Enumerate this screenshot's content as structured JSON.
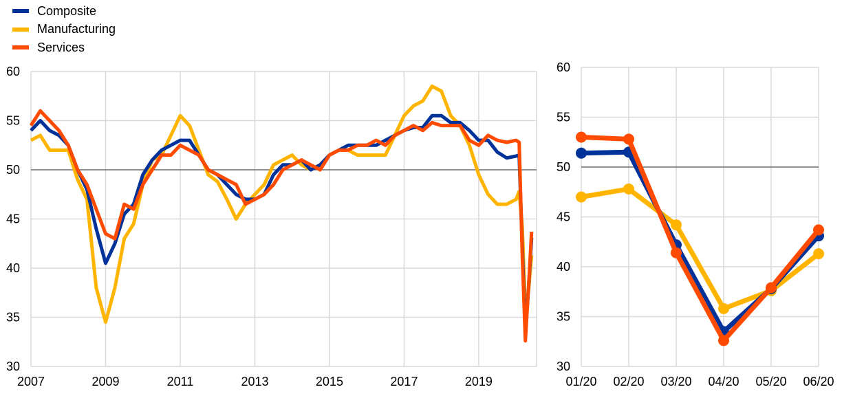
{
  "colors": {
    "Composite": "#003299",
    "Manufacturing": "#ffb400",
    "Services": "#ff4b00",
    "grid": "#d9d9d9",
    "reference": "#595959"
  },
  "legend": [
    "Composite",
    "Manufacturing",
    "Services"
  ],
  "chart_data": [
    {
      "type": "line",
      "title": "",
      "xlabel": "",
      "ylabel": "",
      "x_ticks": [
        "2007",
        "2009",
        "2011",
        "2013",
        "2015",
        "2017",
        "2019"
      ],
      "y_ticks": [
        30,
        35,
        40,
        45,
        50,
        55,
        60
      ],
      "ylim": [
        30,
        60
      ],
      "xlim": [
        2007,
        2020.55
      ],
      "reference_line": 50,
      "grid": true,
      "x": [
        2007.0,
        2007.25,
        2007.5,
        2007.75,
        2008.0,
        2008.25,
        2008.5,
        2008.75,
        2009.0,
        2009.25,
        2009.5,
        2009.75,
        2010.0,
        2010.25,
        2010.5,
        2010.75,
        2011.0,
        2011.25,
        2011.5,
        2011.75,
        2012.0,
        2012.25,
        2012.5,
        2012.75,
        2013.0,
        2013.25,
        2013.5,
        2013.75,
        2014.0,
        2014.25,
        2014.5,
        2014.75,
        2015.0,
        2015.25,
        2015.5,
        2015.75,
        2016.0,
        2016.25,
        2016.5,
        2016.75,
        2017.0,
        2017.25,
        2017.5,
        2017.75,
        2018.0,
        2018.25,
        2018.5,
        2018.75,
        2019.0,
        2019.25,
        2019.5,
        2019.75,
        2020.0,
        2020.083,
        2020.167,
        2020.25,
        2020.333,
        2020.417
      ],
      "series": [
        {
          "name": "Composite",
          "values": [
            54.0,
            55.0,
            54.0,
            53.5,
            52.5,
            50.0,
            48.0,
            44.0,
            40.5,
            42.5,
            45.5,
            46.5,
            49.5,
            51.0,
            52.0,
            52.5,
            53.0,
            53.0,
            51.5,
            50.0,
            49.5,
            48.5,
            47.5,
            47.0,
            47.0,
            47.5,
            49.5,
            50.5,
            50.5,
            51.0,
            50.0,
            50.5,
            51.5,
            52.0,
            52.5,
            52.5,
            52.5,
            52.5,
            53.0,
            53.5,
            54.0,
            54.3,
            54.3,
            55.5,
            55.5,
            54.8,
            54.8,
            54.0,
            53.0,
            53.0,
            51.8,
            51.2,
            51.4,
            51.5,
            42.2,
            33.5,
            37.8,
            43.1
          ]
        },
        {
          "name": "Manufacturing",
          "values": [
            53.0,
            53.5,
            52.0,
            52.0,
            52.0,
            49.0,
            47.0,
            38.0,
            34.5,
            38.0,
            43.0,
            44.5,
            48.5,
            51.0,
            51.5,
            53.5,
            55.5,
            54.5,
            52.0,
            49.5,
            48.8,
            47.0,
            45.0,
            46.5,
            47.5,
            48.5,
            50.5,
            51.0,
            51.5,
            50.5,
            50.0,
            50.5,
            51.5,
            52.0,
            52.0,
            51.5,
            51.5,
            51.5,
            51.5,
            53.5,
            55.5,
            56.5,
            57.0,
            58.5,
            58.0,
            55.5,
            54.5,
            52.5,
            49.5,
            47.5,
            46.5,
            46.5,
            47.0,
            47.8,
            44.2,
            35.8,
            37.6,
            41.3
          ]
        },
        {
          "name": "Services",
          "values": [
            54.5,
            56.0,
            55.0,
            54.0,
            52.5,
            50.0,
            48.5,
            46.0,
            43.5,
            43.0,
            46.5,
            46.0,
            48.5,
            50.0,
            51.5,
            51.5,
            52.5,
            52.0,
            51.5,
            50.0,
            49.5,
            49.0,
            48.5,
            46.5,
            47.0,
            47.5,
            48.5,
            50.0,
            50.5,
            51.0,
            50.5,
            50.0,
            51.5,
            52.0,
            52.0,
            52.5,
            52.5,
            53.0,
            52.5,
            53.5,
            54.0,
            54.5,
            54.0,
            54.8,
            54.5,
            54.5,
            54.5,
            53.0,
            52.5,
            53.5,
            53.0,
            52.8,
            53.0,
            52.8,
            41.4,
            32.6,
            37.9,
            43.7
          ]
        }
      ]
    },
    {
      "type": "line",
      "title": "",
      "xlabel": "",
      "ylabel": "",
      "categories": [
        "01/20",
        "02/20",
        "03/20",
        "04/20",
        "05/20",
        "06/20"
      ],
      "y_ticks": [
        30,
        35,
        40,
        45,
        50,
        55,
        60
      ],
      "ylim": [
        30,
        60
      ],
      "reference_line": 50,
      "grid": true,
      "markers": true,
      "series": [
        {
          "name": "Composite",
          "values": [
            51.4,
            51.5,
            42.2,
            33.5,
            37.8,
            43.1
          ]
        },
        {
          "name": "Manufacturing",
          "values": [
            47.0,
            47.8,
            44.2,
            35.8,
            37.6,
            41.3
          ]
        },
        {
          "name": "Services",
          "values": [
            53.0,
            52.8,
            41.4,
            32.6,
            37.9,
            43.7
          ]
        }
      ]
    }
  ]
}
